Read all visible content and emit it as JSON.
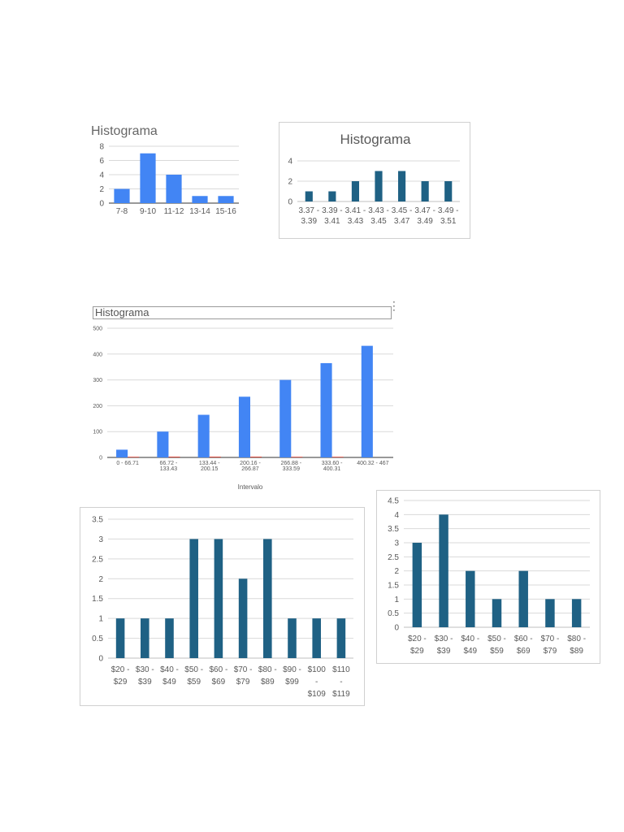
{
  "colors": {
    "blue": "#4285f4",
    "teal": "#1f6184",
    "red": "#db4437",
    "grid": "#d9d9d9",
    "text": "#595959"
  },
  "chart_data": [
    {
      "id": "c1",
      "type": "bar",
      "title": "Histograma",
      "categories": [
        "7-8",
        "9-10",
        "11-12",
        "13-14",
        "15-16"
      ],
      "values": [
        2,
        7,
        4,
        1,
        1
      ],
      "yticks": [
        "0",
        "2",
        "4",
        "6",
        "8"
      ],
      "ylim": [
        0,
        8
      ],
      "grid": true
    },
    {
      "id": "c2",
      "type": "bar",
      "title": "Histograma",
      "categories": [
        [
          "3.37 -",
          "3.39"
        ],
        [
          "3.39 -",
          "3.41"
        ],
        [
          "3.41 -",
          "3.43"
        ],
        [
          "3.43 -",
          "3.45"
        ],
        [
          "3.45 -",
          "3.47"
        ],
        [
          "3.47 -",
          "3.49"
        ],
        [
          "3.49 -",
          "3.51"
        ]
      ],
      "values": [
        1,
        1,
        2,
        3,
        3,
        2,
        2
      ],
      "yticks": [
        "0",
        "2",
        "4"
      ],
      "ylim": [
        0,
        4
      ],
      "grid": true
    },
    {
      "id": "c3",
      "type": "bar",
      "title": "Histograma",
      "xlabel": "Intervalo",
      "categories": [
        [
          "0 - 66.71"
        ],
        [
          "66.72 -",
          "133.43"
        ],
        [
          "133.44 -",
          "200.15"
        ],
        [
          "200.16 -",
          "266.87"
        ],
        [
          "266.88 -",
          "333.59"
        ],
        [
          "333.60 -",
          "400.31"
        ],
        [
          "400.32 - 467"
        ]
      ],
      "series": [
        {
          "values": [
            30,
            100,
            165,
            235,
            300,
            365,
            432
          ]
        },
        {
          "values": [
            1,
            3,
            3,
            3,
            2,
            1,
            0
          ]
        }
      ],
      "yticks": [
        "0",
        "100",
        "200",
        "300",
        "400",
        "500"
      ],
      "ylim": [
        0,
        500
      ],
      "grid": true
    },
    {
      "id": "c4",
      "type": "bar",
      "categories": [
        [
          "$20 -",
          "$29"
        ],
        [
          "$30 -",
          "$39"
        ],
        [
          "$40 -",
          "$49"
        ],
        [
          "$50 -",
          "$59"
        ],
        [
          "$60 -",
          "$69"
        ],
        [
          "$70 -",
          "$79"
        ],
        [
          "$80 -",
          "$89"
        ],
        [
          "$90 -",
          "$99"
        ],
        [
          "$100",
          "-",
          "$109"
        ],
        [
          "$110",
          "-",
          "$119"
        ]
      ],
      "values": [
        1,
        1,
        1,
        3,
        3,
        2,
        3,
        1,
        1,
        1
      ],
      "yticks": [
        "0",
        "0.5",
        "1",
        "1.5",
        "2",
        "2.5",
        "3",
        "3.5"
      ],
      "ylim": [
        0,
        3.5
      ],
      "grid": true
    },
    {
      "id": "c5",
      "type": "bar",
      "categories": [
        [
          "$20 -",
          "$29"
        ],
        [
          "$30 -",
          "$39"
        ],
        [
          "$40 -",
          "$49"
        ],
        [
          "$50 -",
          "$59"
        ],
        [
          "$60 -",
          "$69"
        ],
        [
          "$70 -",
          "$79"
        ],
        [
          "$80 -",
          "$89"
        ]
      ],
      "values": [
        3,
        4,
        2,
        1,
        2,
        1,
        1
      ],
      "yticks": [
        "0",
        "0.5",
        "1",
        "1.5",
        "2",
        "2.5",
        "3",
        "3.5",
        "4",
        "4.5"
      ],
      "ylim": [
        0,
        4.5
      ],
      "grid": true
    }
  ]
}
